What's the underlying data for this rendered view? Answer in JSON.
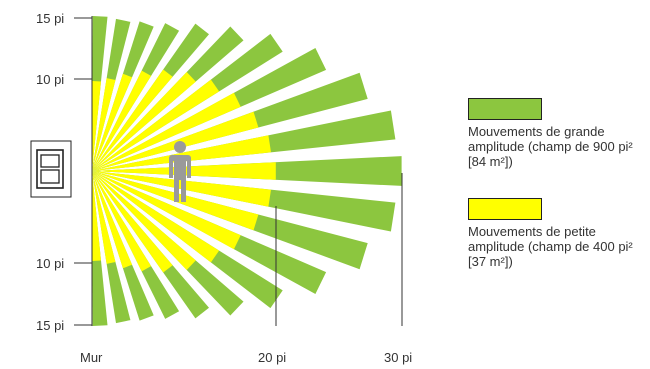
{
  "axes": {
    "x_labels": [
      "Mur",
      "20 pi",
      "30 pi"
    ],
    "y_labels_top": [
      "15 pi",
      "10 pi"
    ],
    "y_labels_bottom": [
      "10 pi",
      "15 pi"
    ]
  },
  "legend": {
    "large": {
      "color": "#8cc63f",
      "label": "Mouvements de grande amplitude (champ de 900 pi² [84 m²])"
    },
    "small": {
      "color": "#ffff00",
      "label": "Mouvements de petite amplitude (champ de 400 pi² [37 m²])"
    }
  },
  "colors": {
    "large_zone": "#8cc63f",
    "small_zone": "#ffff00",
    "person": "#9a9a9a"
  },
  "icons": [
    "sensor-icon",
    "person-icon"
  ]
}
